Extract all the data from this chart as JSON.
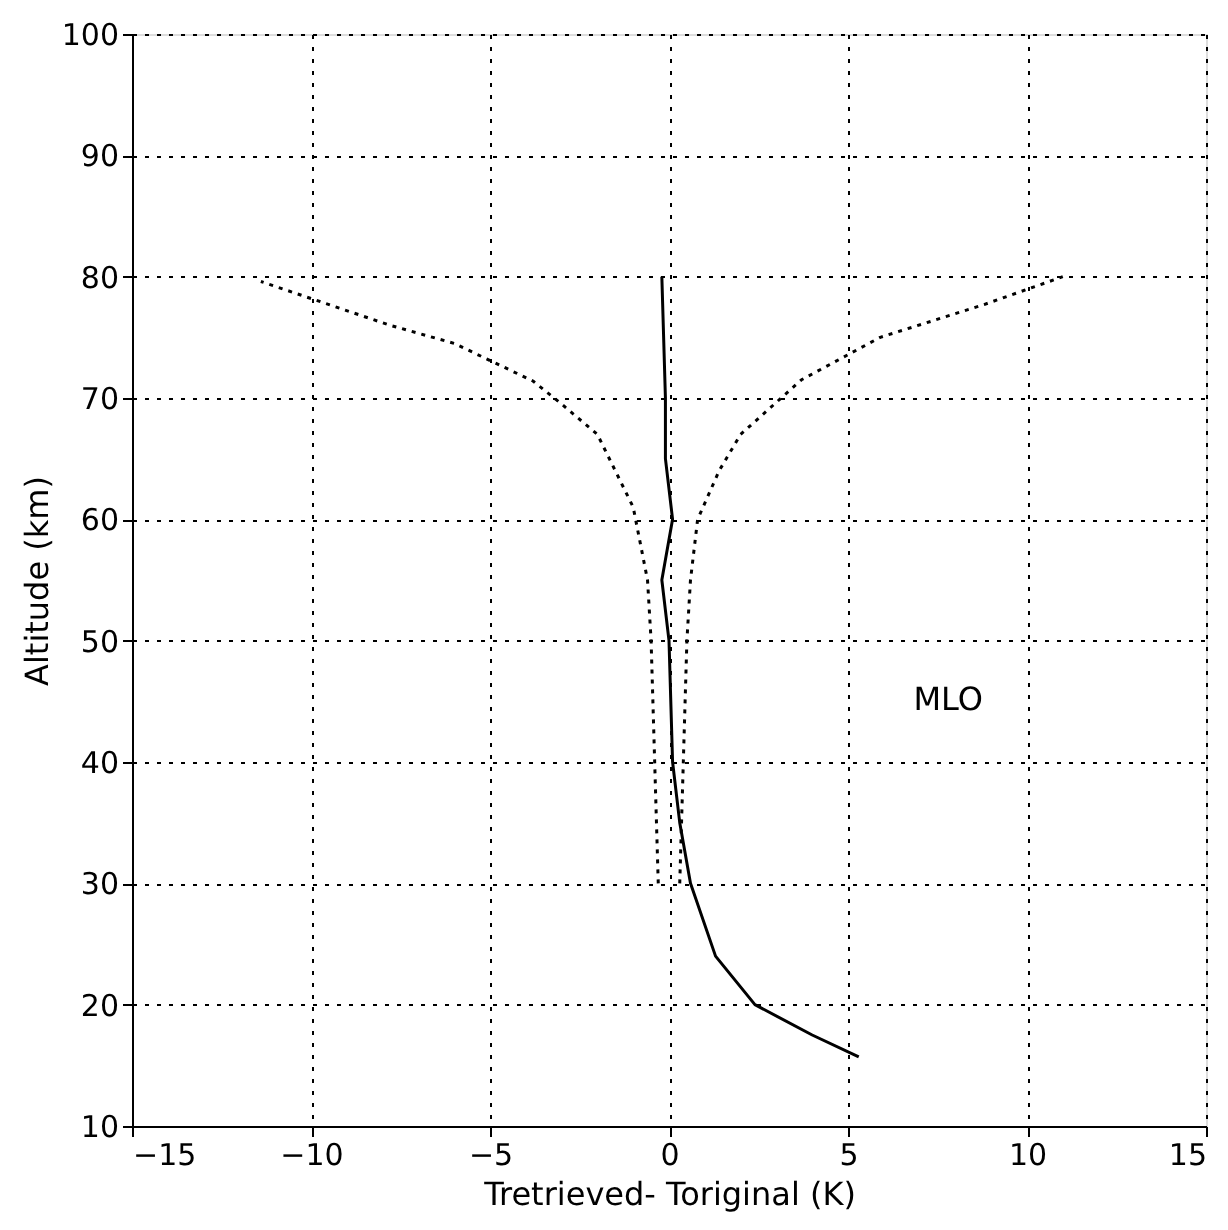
{
  "chart_data": {
    "type": "line",
    "xlabel": "Tretrieved- Toriginal (K)",
    "ylabel": "Altitude (km)",
    "xlim": [
      -15,
      15
    ],
    "xticks": [
      -15,
      -10,
      -5,
      0,
      5,
      10,
      15
    ],
    "ylim": [
      10,
      100
    ],
    "yticks": [
      10,
      20,
      30,
      40,
      50,
      60,
      70,
      80,
      90,
      100
    ],
    "grid": true,
    "marker": "none",
    "annotations": [
      "MLO"
    ],
    "series": [
      {
        "color": "#000000",
        "line_style": "solid",
        "x": [
          5.3,
          4,
          2.4,
          1.3,
          0.6,
          0.3,
          0.1,
          0,
          -0.2,
          0.1,
          -0.1,
          -0.1,
          -0.2
        ],
        "values": [
          15.7,
          17.5,
          20,
          24,
          30,
          35,
          40,
          50,
          55,
          60,
          65,
          70,
          80
        ]
      },
      {
        "color": "#000000",
        "line_style": "dotted",
        "x": [
          -0.3,
          -0.4,
          -0.5,
          -0.6,
          -1,
          -1.5,
          -2,
          -3,
          -3.8,
          -6,
          -7.8,
          -11.4
        ],
        "values": [
          30,
          40,
          50,
          55,
          61,
          64,
          67,
          69.5,
          71.4,
          74.5,
          76,
          79.6
        ]
      },
      {
        "color": "#000000",
        "line_style": "dotted",
        "x": [
          0.3,
          0.4,
          0.5,
          0.6,
          0.8,
          1.4,
          2,
          3.7,
          5.9,
          8.8,
          11
        ],
        "values": [
          30,
          40,
          50,
          55,
          60,
          64,
          67,
          71.5,
          75,
          77.7,
          80
        ]
      }
    ]
  }
}
